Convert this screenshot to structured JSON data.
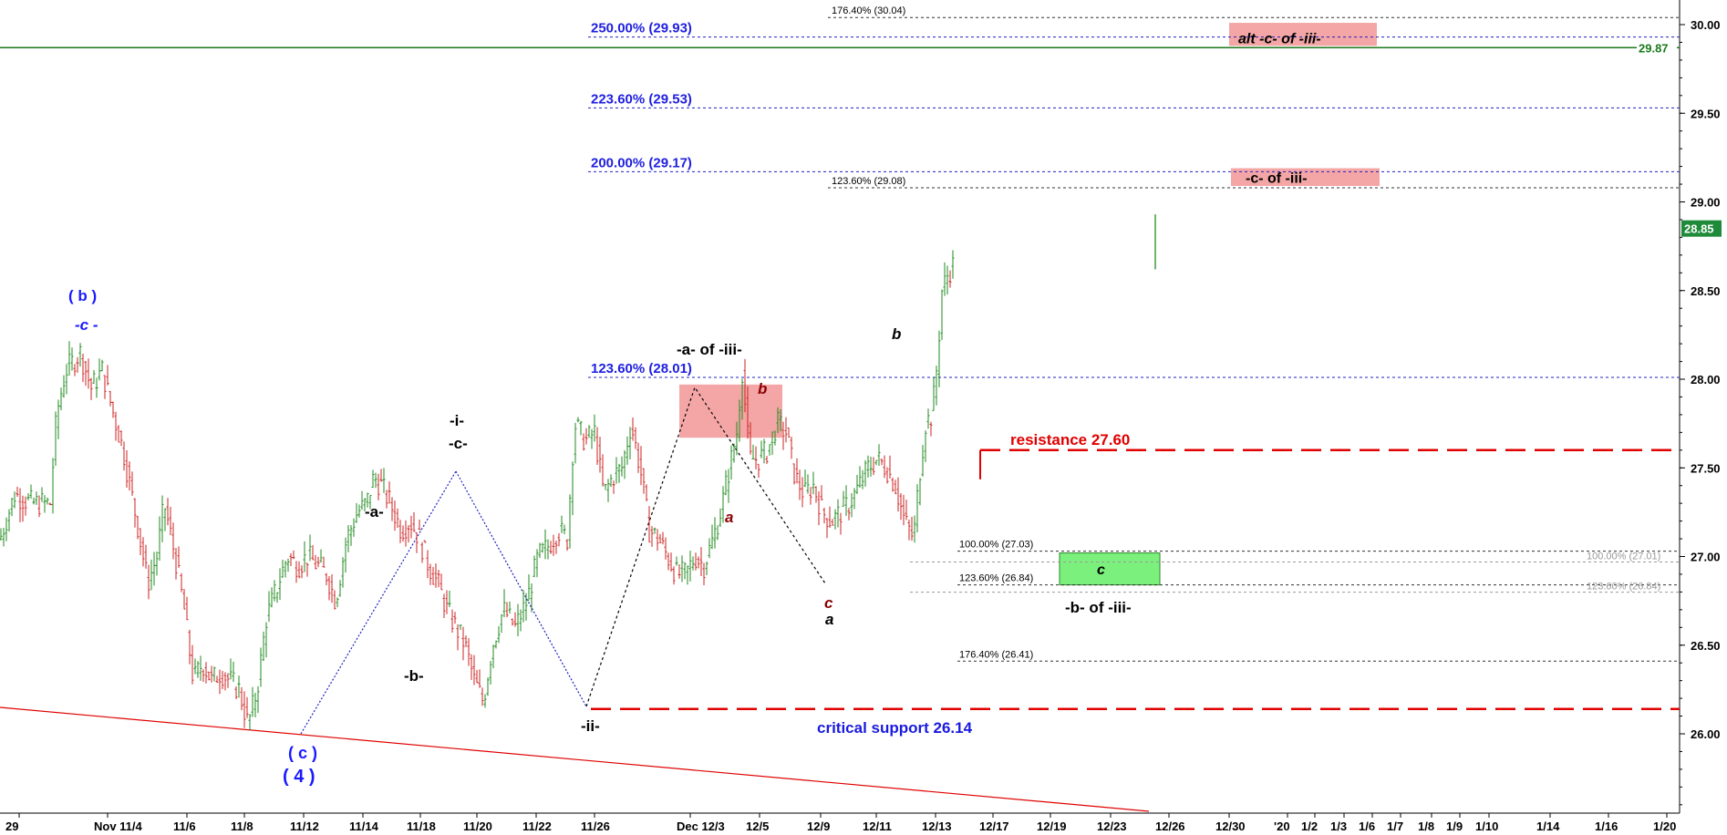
{
  "chart_data": {
    "type": "candlestick",
    "ylim": [
      25.5,
      30.1
    ],
    "yticks": [
      "26.00",
      "26.50",
      "27.00",
      "27.50",
      "28.00",
      "28.50",
      "29.00",
      "29.50",
      "30.00"
    ],
    "xticks": [
      "29",
      "Nov 11/4",
      "11/6",
      "11/8",
      "11/12",
      "11/14",
      "11/18",
      "11/20",
      "11/22",
      "11/26",
      "Dec 12/3",
      "12/5",
      "12/9",
      "12/11",
      "12/13",
      "12/17",
      "12/19",
      "12/23",
      "12/26",
      "12/30",
      "'20",
      "1/2",
      "1/3",
      "1/6",
      "1/7",
      "1/8",
      "1/9",
      "1/10",
      "1/14",
      "1/16",
      "1/20"
    ],
    "price_path": [
      [
        0,
        27.1
      ],
      [
        16,
        27.35
      ],
      [
        35,
        27.3
      ],
      [
        55,
        27.3
      ],
      [
        62,
        27.8
      ],
      [
        72,
        28.05
      ],
      [
        88,
        28.15
      ],
      [
        100,
        27.95
      ],
      [
        112,
        28.05
      ],
      [
        122,
        27.85
      ],
      [
        135,
        27.6
      ],
      [
        150,
        27.2
      ],
      [
        162,
        26.85
      ],
      [
        172,
        27.0
      ],
      [
        180,
        27.3
      ],
      [
        192,
        27.0
      ],
      [
        202,
        26.7
      ],
      [
        212,
        26.3
      ],
      [
        222,
        26.4
      ],
      [
        232,
        26.3
      ],
      [
        242,
        26.35
      ],
      [
        252,
        26.3
      ],
      [
        262,
        26.25
      ],
      [
        272,
        26.05
      ],
      [
        282,
        26.25
      ],
      [
        292,
        26.65
      ],
      [
        302,
        26.8
      ],
      [
        315,
        27.0
      ],
      [
        327,
        26.95
      ],
      [
        337,
        27.0
      ],
      [
        348,
        26.95
      ],
      [
        358,
        26.9
      ],
      [
        368,
        26.75
      ],
      [
        380,
        27.1
      ],
      [
        392,
        27.25
      ],
      [
        402,
        27.3
      ],
      [
        410,
        27.45
      ],
      [
        418,
        27.4
      ],
      [
        428,
        27.3
      ],
      [
        440,
        27.15
      ],
      [
        450,
        27.2
      ],
      [
        460,
        27.1
      ],
      [
        470,
        26.95
      ],
      [
        480,
        26.85
      ],
      [
        490,
        26.7
      ],
      [
        500,
        26.6
      ],
      [
        510,
        26.5
      ],
      [
        520,
        26.3
      ],
      [
        530,
        26.18
      ],
      [
        540,
        26.5
      ],
      [
        552,
        26.7
      ],
      [
        565,
        26.6
      ],
      [
        578,
        26.75
      ],
      [
        590,
        27.0
      ],
      [
        600,
        27.05
      ],
      [
        612,
        27.15
      ],
      [
        622,
        27.1
      ],
      [
        630,
        27.75
      ],
      [
        642,
        27.65
      ],
      [
        652,
        27.7
      ],
      [
        662,
        27.35
      ],
      [
        672,
        27.45
      ],
      [
        682,
        27.5
      ],
      [
        692,
        27.75
      ],
      [
        702,
        27.5
      ],
      [
        712,
        27.15
      ],
      [
        722,
        27.1
      ],
      [
        732,
        27.0
      ],
      [
        742,
        26.9
      ],
      [
        752,
        26.9
      ],
      [
        762,
        27.0
      ],
      [
        772,
        26.95
      ],
      [
        782,
        27.1
      ],
      [
        790,
        27.25
      ],
      [
        800,
        27.5
      ],
      [
        808,
        27.7
      ],
      [
        814,
        28.05
      ],
      [
        822,
        27.55
      ],
      [
        832,
        27.55
      ],
      [
        842,
        27.6
      ],
      [
        852,
        27.75
      ],
      [
        862,
        27.7
      ],
      [
        872,
        27.45
      ],
      [
        882,
        27.35
      ],
      [
        892,
        27.4
      ],
      [
        902,
        27.25
      ],
      [
        912,
        27.2
      ],
      [
        922,
        27.25
      ],
      [
        932,
        27.3
      ],
      [
        942,
        27.4
      ],
      [
        952,
        27.5
      ],
      [
        962,
        27.55
      ],
      [
        972,
        27.5
      ],
      [
        982,
        27.4
      ],
      [
        992,
        27.2
      ],
      [
        1002,
        27.1
      ],
      [
        1008,
        27.45
      ],
      [
        1015,
        27.75
      ],
      [
        1022,
        27.8
      ],
      [
        1028,
        28.1
      ],
      [
        1033,
        28.5
      ],
      [
        1040,
        28.6
      ],
      [
        1046,
        28.65
      ]
    ],
    "last_bar": {
      "open": 28.65,
      "high": 28.93,
      "low": 28.62,
      "close": 28.85
    },
    "last_price_label": "28.85",
    "price_level_line": {
      "value": 29.87,
      "label": "29.87",
      "color": "#1a7a1a"
    },
    "support": {
      "value": 26.14,
      "label": "critical support 26.14",
      "color": "#e00000"
    },
    "resistance": {
      "value": 27.6,
      "label": "resistance 27.60",
      "color": "#e00000"
    },
    "fib_major": [
      {
        "value": 29.93,
        "label": "250.00% (29.93)"
      },
      {
        "value": 29.53,
        "label": "223.60% (29.53)"
      },
      {
        "value": 29.17,
        "label": "200.00% (29.17)"
      },
      {
        "value": 28.01,
        "label": "123.60% (28.01)"
      }
    ],
    "fib_minor_top": [
      {
        "value": 30.04,
        "label": "176.40% (30.04)"
      },
      {
        "value": 29.08,
        "label": "123.60% (29.08)"
      }
    ],
    "fib_minor_low": [
      {
        "value": 27.03,
        "label": "100.00% (27.03)"
      },
      {
        "value": 26.84,
        "label": "123.60% (26.84)"
      },
      {
        "value": 26.41,
        "label": "176.40% (26.41)"
      }
    ],
    "fib_minor_right": [
      {
        "value": 27.01,
        "label": "100.00% (27.01)"
      },
      {
        "value": 26.84,
        "label": "123.60% (26.84)"
      }
    ],
    "target_boxes": [
      {
        "label": "alt -c- of -iii-",
        "low": 29.88,
        "high": 30.01,
        "color": "#f4a6a6"
      },
      {
        "label": "-c- of -iii-",
        "low": 29.09,
        "high": 29.19,
        "color": "#f4a6a6"
      },
      {
        "label": "",
        "low": 27.67,
        "high": 27.97,
        "color": "#f4a6a6"
      },
      {
        "label": "c",
        "low": 26.84,
        "high": 27.02,
        "color": "#7cf07c"
      }
    ],
    "wave_labels": [
      {
        "text": "( b )",
        "color": "#1a1aff"
      },
      {
        "text": "-c -",
        "color": "#1a1aff"
      },
      {
        "text": "( c )",
        "color": "#1a1aff"
      },
      {
        "text": "( 4 )",
        "color": "#1a1aff"
      },
      {
        "text": "-a-",
        "color": "#000000"
      },
      {
        "text": "-b-",
        "color": "#000000"
      },
      {
        "text": "-i-",
        "color": "#000000"
      },
      {
        "text": "-c-",
        "color": "#000000"
      },
      {
        "text": "-ii-",
        "color": "#000000"
      },
      {
        "text": "-a- of -iii-",
        "color": "#000000"
      },
      {
        "text": "b",
        "color": "#8b0000"
      },
      {
        "text": "a",
        "color": "#8b0000"
      },
      {
        "text": "c",
        "color": "#8b0000"
      },
      {
        "text": "a",
        "color": "#000000"
      },
      {
        "text": "b",
        "color": "#000000"
      },
      {
        "text": "-b- of -iii-",
        "color": "#000000"
      }
    ],
    "trendline": {
      "color": "#e00000"
    }
  }
}
